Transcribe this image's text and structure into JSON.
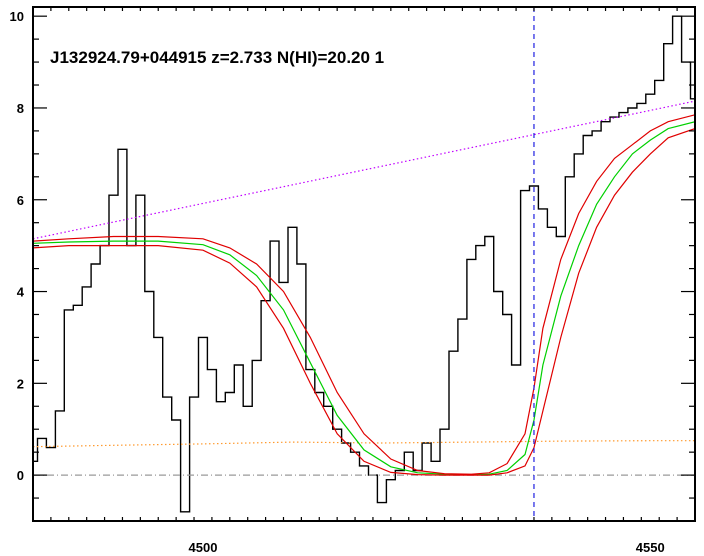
{
  "chart_data": {
    "type": "line",
    "title": "J132924.79+044915 z=2.733 N(HI)=20.20 1",
    "xlabel": "",
    "ylabel": "",
    "xlim": [
      4481,
      4555
    ],
    "ylim": [
      -1.0,
      10.2
    ],
    "x_ticks": [
      4500,
      4550
    ],
    "y_ticks": [
      0,
      2,
      4,
      6,
      8,
      10
    ],
    "grid": false,
    "legend": "none",
    "vline_x": 4537.0,
    "series": [
      {
        "id": "flux",
        "style": "step",
        "color": "#000000",
        "x": [
          4481,
          4482,
          4483,
          4484,
          4485,
          4486,
          4487,
          4488,
          4489,
          4490,
          4491,
          4492,
          4493,
          4494,
          4495,
          4496,
          4497,
          4498,
          4499,
          4500,
          4501,
          4502,
          4503,
          4504,
          4505,
          4506,
          4507,
          4508,
          4509,
          4510,
          4511,
          4512,
          4513,
          4514,
          4515,
          4516,
          4517,
          4518,
          4519,
          4520,
          4521,
          4522,
          4523,
          4524,
          4525,
          4526,
          4527,
          4528,
          4529,
          4530,
          4531,
          4532,
          4533,
          4534,
          4535,
          4536,
          4537,
          4538,
          4539,
          4540,
          4541,
          4542,
          4543,
          4544,
          4545,
          4546,
          4547,
          4548,
          4549,
          4550,
          4551,
          4552,
          4553,
          4554,
          4555
        ],
        "y": [
          0.3,
          0.8,
          0.6,
          1.4,
          3.6,
          3.7,
          4.1,
          4.6,
          5.0,
          6.1,
          7.1,
          5.0,
          6.1,
          4.0,
          3.0,
          1.7,
          1.2,
          -0.8,
          1.7,
          3.0,
          2.3,
          1.6,
          1.8,
          2.4,
          1.5,
          2.5,
          3.8,
          5.1,
          4.2,
          5.4,
          4.6,
          2.3,
          1.8,
          1.5,
          1.0,
          0.7,
          0.5,
          0.2,
          0.0,
          -0.6,
          -0.1,
          0.1,
          0.5,
          0.1,
          0.7,
          0.3,
          1.0,
          2.7,
          3.4,
          4.7,
          5.0,
          5.2,
          4.0,
          3.5,
          2.4,
          6.2,
          6.3,
          5.8,
          5.4,
          5.2,
          6.5,
          7.0,
          7.4,
          7.5,
          7.7,
          7.8,
          7.9,
          8.0,
          8.1,
          8.3,
          8.6,
          9.4,
          10.0,
          9.0,
          8.2
        ]
      },
      {
        "id": "continuum",
        "style": "dotted",
        "color": "#c000ff",
        "x": [
          4481,
          4555
        ],
        "y": [
          5.15,
          8.15
        ]
      },
      {
        "id": "error",
        "style": "dotted",
        "color": "#ff9a2e",
        "x": [
          4481,
          4490,
          4500,
          4510,
          4520,
          4530,
          4540,
          4550,
          4555
        ],
        "y": [
          0.62,
          0.65,
          0.68,
          0.72,
          0.7,
          0.72,
          0.74,
          0.75,
          0.75
        ]
      },
      {
        "id": "zero",
        "style": "dashdot",
        "color": "#9a9a9a",
        "x": [
          4481,
          4555
        ],
        "y": [
          0,
          0
        ]
      },
      {
        "id": "fit",
        "style": "solid",
        "color": "#00d000",
        "x": [
          4481,
          4485,
          4490,
          4495,
          4500,
          4503,
          4506,
          4509,
          4512,
          4515,
          4518,
          4521,
          4524,
          4527,
          4530,
          4532,
          4534,
          4536,
          4537,
          4538,
          4540,
          4542,
          4544,
          4546,
          4548,
          4550,
          4552,
          4555
        ],
        "y": [
          5.05,
          5.08,
          5.1,
          5.1,
          5.02,
          4.8,
          4.35,
          3.6,
          2.45,
          1.3,
          0.55,
          0.18,
          0.05,
          0.02,
          0.01,
          0.02,
          0.1,
          0.45,
          1.2,
          2.4,
          3.9,
          5.0,
          5.9,
          6.5,
          7.0,
          7.3,
          7.55,
          7.7
        ]
      },
      {
        "id": "fit_upper",
        "style": "solid",
        "color": "#e00000",
        "x": [
          4481,
          4485,
          4490,
          4495,
          4500,
          4503,
          4506,
          4509,
          4512,
          4515,
          4518,
          4521,
          4524,
          4527,
          4530,
          4532,
          4534,
          4536,
          4537,
          4538,
          4540,
          4542,
          4544,
          4546,
          4548,
          4550,
          4552,
          4555
        ],
        "y": [
          5.1,
          5.15,
          5.2,
          5.2,
          5.15,
          4.95,
          4.6,
          4.0,
          3.0,
          1.8,
          0.9,
          0.35,
          0.1,
          0.03,
          0.02,
          0.05,
          0.25,
          0.9,
          1.9,
          3.2,
          4.7,
          5.7,
          6.4,
          6.9,
          7.2,
          7.5,
          7.7,
          7.85
        ]
      },
      {
        "id": "fit_lower",
        "style": "solid",
        "color": "#e00000",
        "x": [
          4481,
          4485,
          4490,
          4495,
          4500,
          4503,
          4506,
          4509,
          4512,
          4515,
          4518,
          4521,
          4524,
          4527,
          4530,
          4532,
          4534,
          4536,
          4537,
          4538,
          4540,
          4542,
          4544,
          4546,
          4548,
          4550,
          4552,
          4555
        ],
        "y": [
          4.95,
          5.0,
          5.0,
          5.0,
          4.9,
          4.62,
          4.1,
          3.2,
          2.0,
          0.9,
          0.3,
          0.06,
          0.01,
          0.0,
          0.0,
          0.0,
          0.05,
          0.2,
          0.6,
          1.4,
          3.0,
          4.4,
          5.4,
          6.1,
          6.6,
          7.0,
          7.35,
          7.55
        ]
      }
    ]
  }
}
